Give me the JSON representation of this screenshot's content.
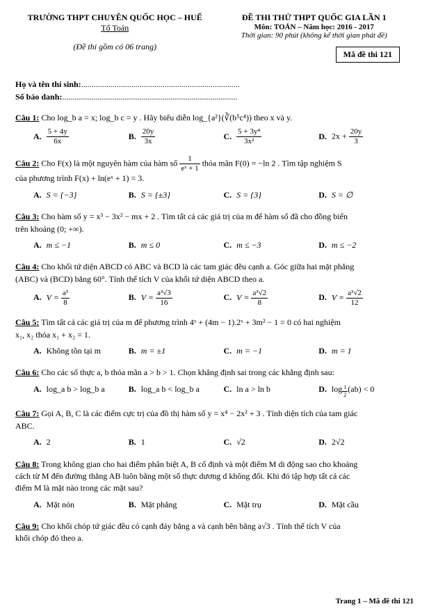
{
  "header": {
    "school": "TRƯỜNG THPT CHUYÊN QUỐC HỌC – HUẾ",
    "department": "Tổ Toán",
    "note": "(Đề thi gồm có 06 trang)",
    "exam_title": "ĐỀ THI THỬ THPT QUỐC GIA LẦN 1",
    "subject": "Môn: TOÁN – Năm học: 2016 - 2017",
    "time": "Thời gian: 90 phút (không kể thời gian phát đề)",
    "exam_code_label": "Mã đề thi 121"
  },
  "fill_in": {
    "name_label": "Họ và tên thí sinh:",
    "id_label": "Số báo danh:"
  },
  "q1": {
    "label": "Câu 1:",
    "text": "Cho log_b a = x; log_b c = y . Hãy biểu diễn log_{a²}(∛(b⁵c⁴)) theo x và y.",
    "A_num": "5 + 4y",
    "A_den": "6x",
    "B_num": "20y",
    "B_den": "3x",
    "C_num": "5 + 3y⁴",
    "C_den": "3x²",
    "D_pre": "2x +",
    "D_num": "20y",
    "D_den": "3"
  },
  "q2": {
    "label": "Câu 2:",
    "p1": "Cho F(x) là một nguyên hàm của hàm số ",
    "f_num": "1",
    "f_den": "eˣ + 1",
    "p2": " thỏa mãn F(0) = −ln 2 . Tìm tập nghiệm S",
    "p3": "của phương trình F(x) + ln(eˣ + 1) = 3.",
    "A": "S = {−3}",
    "B": "S = {±3}",
    "C": "S = {3}",
    "D": "S = ∅"
  },
  "q3": {
    "label": "Câu 3:",
    "text1": "Cho hàm số y = x³ − 3x² − mx + 2 . Tìm tất cả các giá trị của m để hàm số đã cho đồng biến",
    "text2": "trên khoảng (0; +∞).",
    "A": "m ≤ −1",
    "B": "m ≤ 0",
    "C": "m ≤ −3",
    "D": "m ≤ −2"
  },
  "q4": {
    "label": "Câu 4:",
    "text1": "Cho khối tứ diện ABCD có ABC và BCD là các tam giác đều cạnh a. Góc giữa hai mặt phẳng",
    "text2": "(ABC) và (BCD) bằng 60°. Tính thể tích V của khối tứ diện ABCD theo a.",
    "A_pre": "V =",
    "A_num": "a³",
    "A_den": "8",
    "B_pre": "V =",
    "B_num": "a³√3",
    "B_den": "16",
    "C_pre": "V =",
    "C_num": "a³√2",
    "C_den": "8",
    "D_pre": "V =",
    "D_num": "a³√2",
    "D_den": "12"
  },
  "q5": {
    "label": "Câu 5:",
    "text1": "Tìm tất cả các giá trị của m để phương trình  4ˣ + (4m − 1).2ˣ + 3m² − 1 = 0  có hai nghiệm",
    "text2": "x₁, x₂ thỏa x₁ + x₂ = 1.",
    "A": "Không tồn tại m",
    "B": "m = ±1",
    "C": "m = −1",
    "D": "m = 1"
  },
  "q6": {
    "label": "Câu 6:",
    "text": "Cho các số thực a, b thỏa mãn a > b > 1. Chọn khẳng định sai trong các khẳng định sau:",
    "A": "log_a b > log_b a",
    "B": "log_a b < log_b a",
    "C": "ln a > ln b",
    "D_pre": "log",
    "D_sub": "½",
    "D_post": "(ab) < 0"
  },
  "q7": {
    "label": "Câu 7:",
    "text1": "Gọi A, B, C là các điểm cực trị của đồ thị hàm số y = x⁴ − 2x² + 3 . Tính diện tích của tam giác",
    "text2": "ABC.",
    "A": "2",
    "B": "1",
    "C": "√2",
    "D": "2√2"
  },
  "q8": {
    "label": "Câu 8:",
    "text1": "Trong không gian cho hai điểm phân biệt A, B cố định và một điểm M di động sao cho khoảng",
    "text2": "cách từ M đến đường thẳng AB luôn bằng một số thực dương d không đổi. Khi đó tập hợp tất cả các",
    "text3": "điểm M là mặt nào trong các mặt sau?",
    "A": "Mặt nón",
    "B": "Mặt phẳng",
    "C": "Mặt trụ",
    "D": "Mặt cầu"
  },
  "q9": {
    "label": "Câu 9:",
    "text1": "Cho khối chóp tứ giác đều có cạnh đáy bằng a và cạnh bên bằng a√3 . Tính thể tích V của",
    "text2": "khối chóp đó theo a."
  },
  "footer": "Trang 1 – Mã đề thi 121"
}
